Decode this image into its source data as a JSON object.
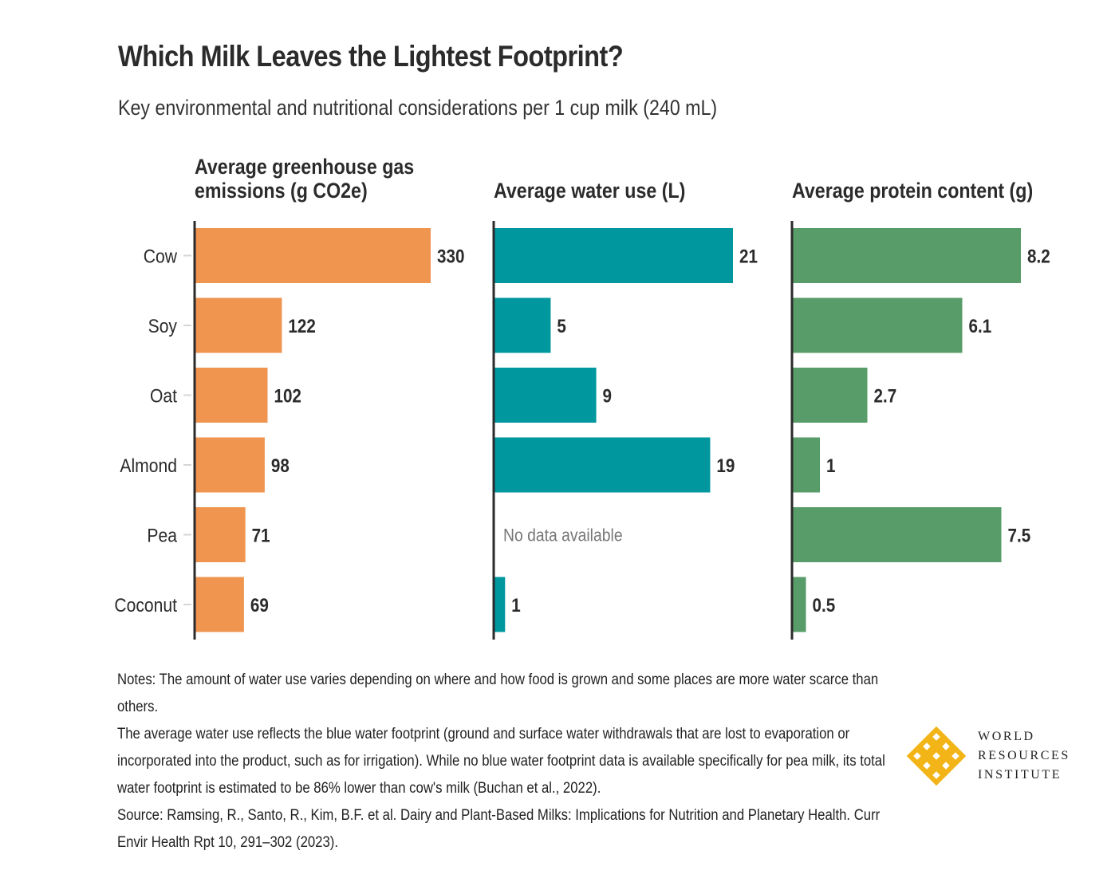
{
  "title": "Which Milk Leaves the Lightest Footprint?",
  "subtitle": "Key environmental and nutritional considerations per 1 cup milk (240 mL)",
  "colors": {
    "ghg": "#ef9550",
    "water": "#00979f",
    "protein": "#579c69",
    "axis": "#2b2b2b",
    "text": "#2b2b2b",
    "muted": "#777777",
    "logo": "#f2b416"
  },
  "chart_data": {
    "type": "bar",
    "orientation": "horizontal",
    "categories": [
      "Cow",
      "Soy",
      "Oat",
      "Almond",
      "Pea",
      "Coconut"
    ],
    "panels": [
      {
        "title_lines": [
          "Average greenhouse gas",
          "emissions (g CO2e)"
        ],
        "values": [
          330,
          122,
          102,
          98,
          71,
          69
        ],
        "labels": [
          "330",
          "122",
          "102",
          "98",
          "71",
          "69"
        ],
        "xlim": [
          0,
          330
        ],
        "color": "#ef9550"
      },
      {
        "title_lines": [
          "Average water use (L)"
        ],
        "values": [
          21,
          5,
          9,
          19,
          null,
          1
        ],
        "labels": [
          "21",
          "5",
          "9",
          "19",
          "",
          "1"
        ],
        "missing_text": "No data available",
        "xlim": [
          0,
          21
        ],
        "color": "#00979f"
      },
      {
        "title_lines": [
          "Average protein content (g)"
        ],
        "values": [
          8.2,
          6.1,
          2.7,
          1,
          7.5,
          0.5
        ],
        "labels": [
          "8.2",
          "6.1",
          "2.7",
          "1",
          "7.5",
          "0.5"
        ],
        "xlim": [
          0,
          8.2
        ],
        "color": "#579c69"
      }
    ]
  },
  "notes": [
    "Notes: The amount of water use varies depending on where and how food is grown and some places are more water scarce than others.",
    "The average water use reflects the blue water footprint (ground and surface water withdrawals that are lost to evaporation or incorporated into the product, such as for irrigation). While no blue water footprint data is available specifically for pea milk, its total water footprint is estimated to be 86% lower than cow's milk (Buchan et al., 2022).",
    "Source: Ramsing, R., Santo, R., Kim, B.F. et al. Dairy and Plant-Based Milks: Implications for Nutrition and Planetary Health. Curr Envir Health Rpt 10, 291–302 (2023)."
  ],
  "logo": {
    "name": "wri-logo-icon",
    "lines": [
      "WORLD",
      "RESOURCES",
      "INSTITUTE"
    ]
  }
}
